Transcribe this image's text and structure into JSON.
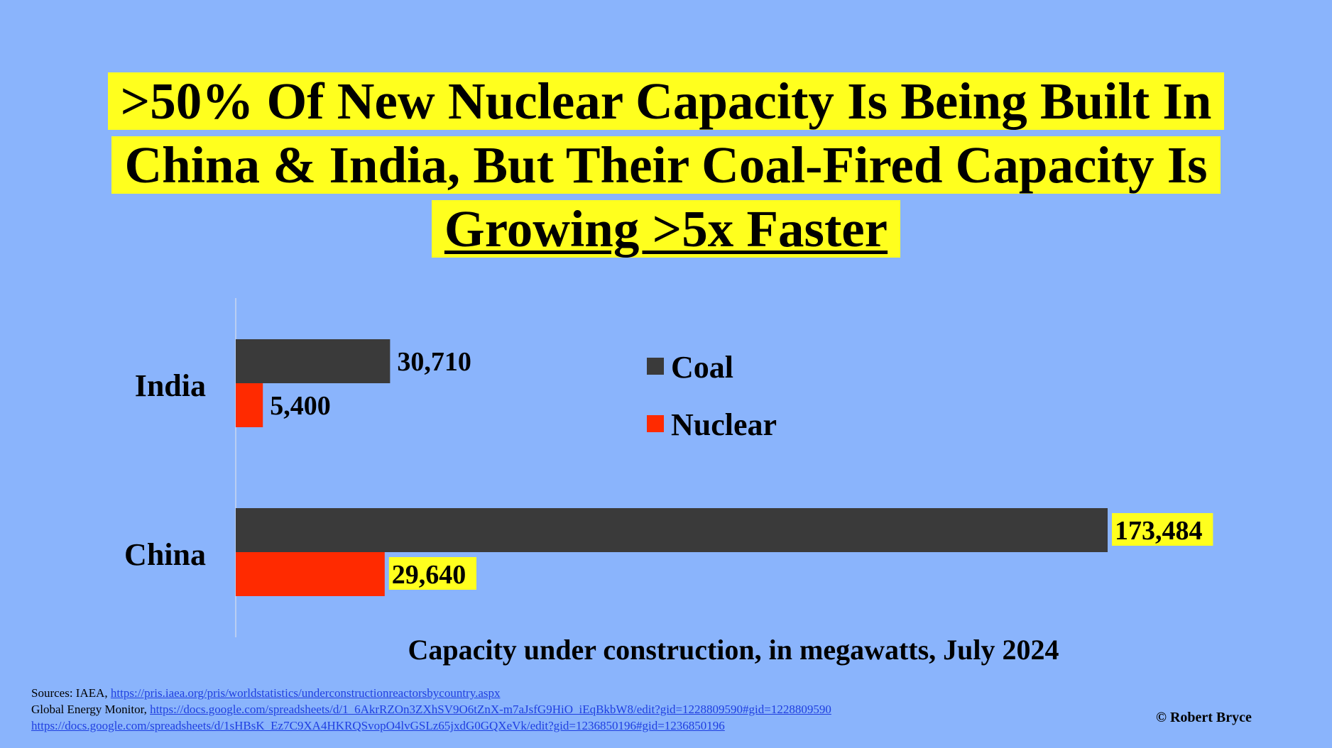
{
  "title": {
    "line1": ">50% Of New Nuclear Capacity Is Being Built In",
    "line2": "China & India, But Their Coal-Fired Capacity Is",
    "line3": "Growing >5x Faster"
  },
  "chart_data": {
    "type": "bar",
    "orientation": "horizontal",
    "categories": [
      "India",
      "China"
    ],
    "series": [
      {
        "name": "Coal",
        "color": "#3a3a3a",
        "values": [
          30710,
          173484
        ],
        "labels": [
          "30,710",
          "173,484"
        ]
      },
      {
        "name": "Nuclear",
        "color": "#ff2a00",
        "values": [
          5400,
          29640
        ],
        "labels": [
          "5,400",
          "29,640"
        ]
      }
    ],
    "highlighted_labels": [
      "173,484",
      "29,640"
    ],
    "highlight_color": "#ffff1e",
    "xlabel": "Capacity under construction, in megawatts, July 2024",
    "xlim": [
      0,
      180000
    ],
    "legend_position": "right-of-top-category",
    "grid": false
  },
  "sources": {
    "line1_prefix": "Sources: IAEA, ",
    "line1_link": "https://pris.iaea.org/pris/worldstatistics/underconstructionreactorsbycountry.aspx",
    "line2_prefix": "Global Energy Monitor, ",
    "line2_link": "https://docs.google.com/spreadsheets/d/1_6AkrRZOn3ZXhSV9O6tZnX-m7aJsfG9HiO_iEqBkbW8/edit?gid=1228809590#gid=1228809590",
    "line3_link": "https://docs.google.com/spreadsheets/d/1sHBsK_Ez7C9XA4HKRQSvopO4lvGSLz65jxdG0GQXeVk/edit?gid=1236850196#gid=1236850196"
  },
  "copyright": "© Robert Bryce",
  "colors": {
    "background": "#8ab4fc",
    "title_highlight": "#ffff1e"
  }
}
